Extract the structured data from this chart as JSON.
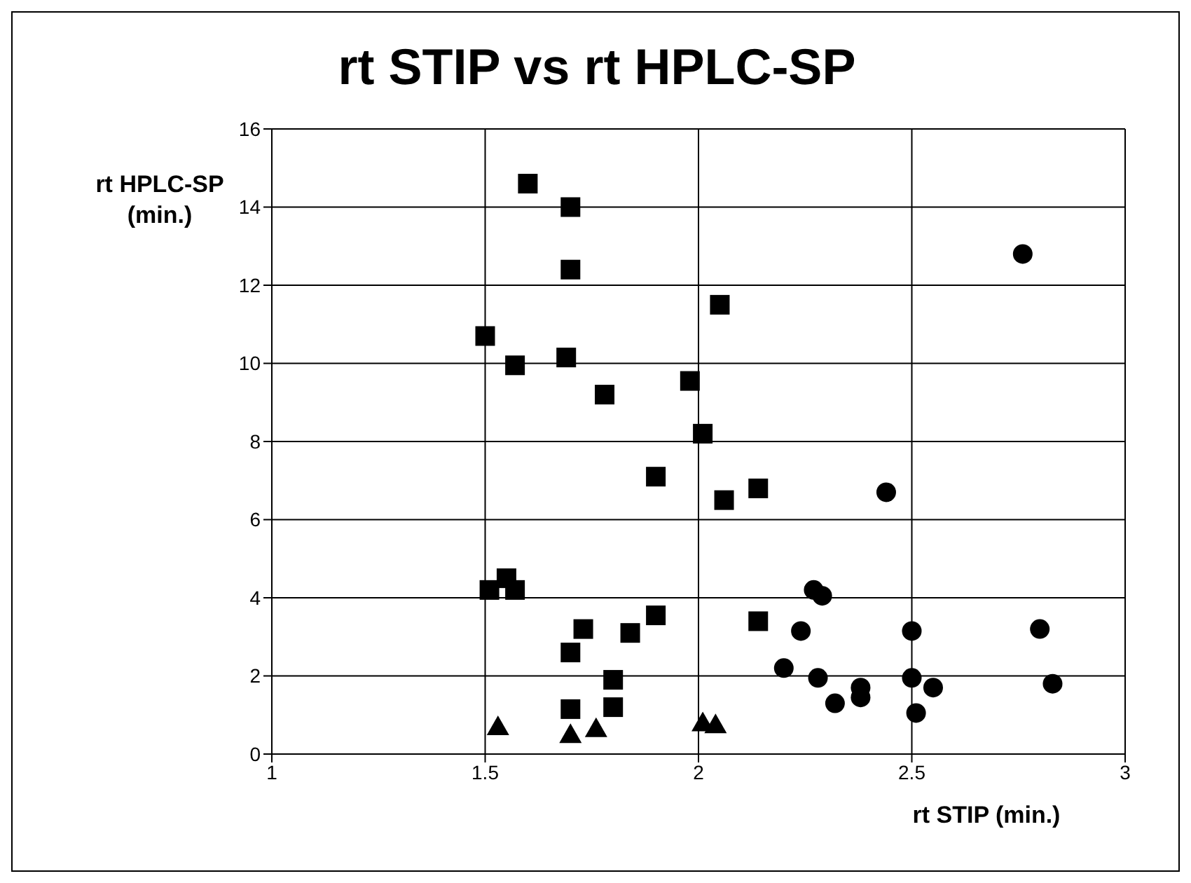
{
  "chart_data": {
    "type": "scatter",
    "title": "rt STIP vs rt HPLC-SP",
    "xlabel": "rt STIP (min.)",
    "ylabel": "rt HPLC-SP (min.)",
    "xlim": [
      1,
      3
    ],
    "xticks": [
      1,
      1.5,
      2,
      2.5,
      3
    ],
    "ylim": [
      0,
      16
    ],
    "yticks": [
      0,
      2,
      4,
      6,
      8,
      10,
      12,
      14,
      16
    ],
    "grid": true,
    "legend": false,
    "series": [
      {
        "color": "#000000",
        "marker": "square",
        "x": [
          1.6,
          1.7,
          1.7,
          1.5,
          1.57,
          1.69,
          1.78,
          1.98,
          2.05,
          2.01,
          1.9,
          2.06,
          2.14,
          1.51,
          1.55,
          1.57,
          1.73,
          1.7,
          1.84,
          1.9,
          2.14,
          1.8,
          1.7,
          1.8
        ],
        "values": [
          14.6,
          14.0,
          12.4,
          10.7,
          9.95,
          10.15,
          9.2,
          9.55,
          11.5,
          8.2,
          7.1,
          6.5,
          6.8,
          4.2,
          4.5,
          4.2,
          3.2,
          2.6,
          3.1,
          3.55,
          3.4,
          1.9,
          1.15,
          1.2
        ]
      },
      {
        "color": "#000000",
        "marker": "triangle",
        "x": [
          1.53,
          1.7,
          1.76,
          2.01,
          2.04
        ],
        "values": [
          0.7,
          0.5,
          0.65,
          0.8,
          0.75
        ]
      },
      {
        "color": "#000000",
        "marker": "circle",
        "x": [
          2.76,
          2.44,
          2.27,
          2.29,
          2.24,
          2.5,
          2.8,
          2.2,
          2.28,
          2.5,
          2.38,
          2.38,
          2.32,
          2.55,
          2.51,
          2.83
        ],
        "values": [
          12.8,
          6.7,
          4.2,
          4.05,
          3.15,
          3.15,
          3.2,
          2.2,
          1.95,
          1.95,
          1.7,
          1.45,
          1.3,
          1.7,
          1.05,
          1.8
        ]
      }
    ]
  }
}
